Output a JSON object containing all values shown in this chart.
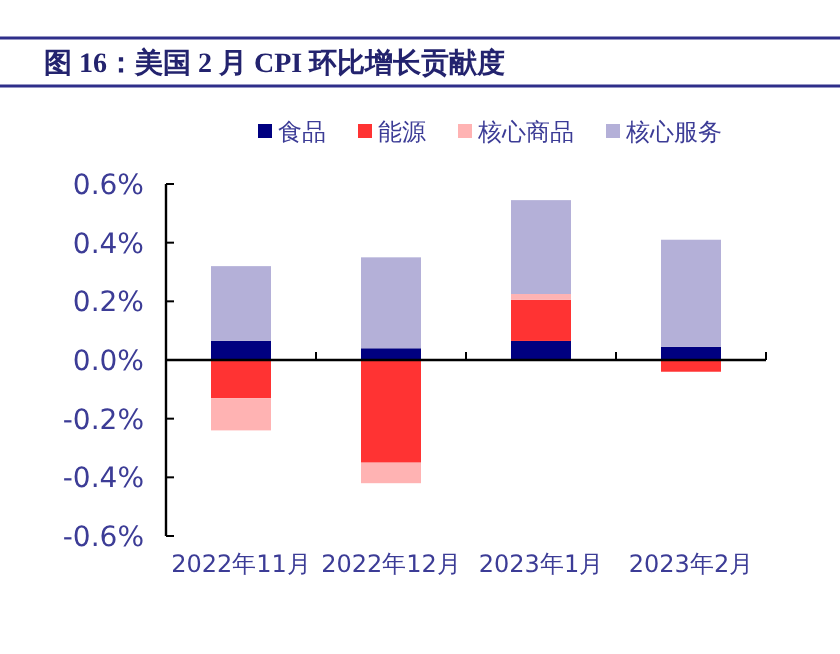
{
  "chart_data": {
    "type": "bar",
    "title": "图 16：美国 2 月 CPI 环比增长贡献度",
    "categories": [
      "2022年11月",
      "2022年12月",
      "2023年1月",
      "2023年2月"
    ],
    "stacked": true,
    "legend": "top",
    "series": [
      {
        "name": "食品",
        "color": "#000080",
        "values": [
          0.065,
          0.04,
          0.065,
          0.045
        ]
      },
      {
        "name": "能源",
        "color": "#ff3333",
        "values": [
          -0.13,
          -0.35,
          0.14,
          -0.04
        ]
      },
      {
        "name": "核心商品",
        "color": "#ffb3b3",
        "values": [
          -0.11,
          -0.07,
          0.02,
          0
        ]
      },
      {
        "name": "核心服务",
        "color": "#b4b0d8",
        "values": [
          0.255,
          0.31,
          0.32,
          0.365
        ]
      }
    ],
    "ylim": [
      -0.6,
      0.6
    ],
    "yticks": [
      {
        "value": -0.6,
        "label": "-0.6%"
      },
      {
        "value": -0.4,
        "label": "-0.4%"
      },
      {
        "value": -0.2,
        "label": "-0.2%"
      },
      {
        "value": 0,
        "label": "0.0%"
      },
      {
        "value": 0.2,
        "label": "0.2%"
      },
      {
        "value": 0.4,
        "label": "0.4%"
      },
      {
        "value": 0.6,
        "label": "0.6%"
      }
    ]
  }
}
